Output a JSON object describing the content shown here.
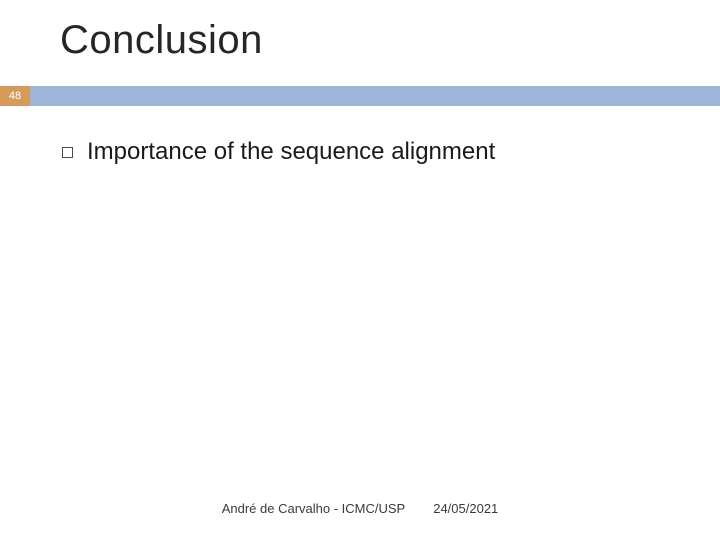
{
  "slide": {
    "title": "Conclusion",
    "page_number": "48",
    "bullet": {
      "text": "Importance of the sequence alignment"
    },
    "footer": {
      "author": "André de Carvalho - ICMC/USP",
      "date": "24/05/2021"
    }
  },
  "style": {
    "background_color": "#ffffff",
    "title_color": "#262626",
    "title_fontsize": 40,
    "page_badge_bg": "#d59b5b",
    "page_badge_text_color": "#ffffff",
    "bar_color": "#9fb4d9",
    "bullet_border_color": "#4a4a4a",
    "body_text_color": "#1a1a1a",
    "body_fontsize": 24,
    "footer_text_color": "#3a3a3a",
    "footer_fontsize": 13
  }
}
